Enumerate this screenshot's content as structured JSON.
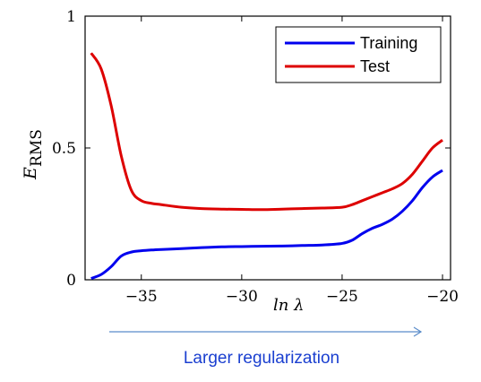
{
  "chart_data": {
    "type": "line",
    "xlabel": "ln λ",
    "ylabel": "E",
    "ylabel_sub": "RMS",
    "xlim": [
      -37.8,
      -19.6
    ],
    "ylim": [
      0,
      1
    ],
    "xticks": [
      -35,
      -30,
      -25,
      -20
    ],
    "xtick_labels": [
      "−35",
      "−30",
      "−25",
      "−20"
    ],
    "yticks": [
      0,
      0.5,
      1
    ],
    "ytick_labels": [
      "0",
      "0.5",
      "1"
    ],
    "grid": false,
    "legend_position": "top-right",
    "series": [
      {
        "name": "Training",
        "color": "#0000ee",
        "x": [
          -37.5,
          -37.0,
          -36.5,
          -36.0,
          -35.5,
          -35.0,
          -34.5,
          -34.0,
          -33.0,
          -32.0,
          -31.0,
          -30.0,
          -29.0,
          -28.0,
          -27.0,
          -26.0,
          -25.0,
          -24.5,
          -24.0,
          -23.5,
          -23.0,
          -22.5,
          -22.0,
          -21.5,
          -21.0,
          -20.5,
          -20.0
        ],
        "y": [
          0.005,
          0.02,
          0.05,
          0.09,
          0.105,
          0.11,
          0.113,
          0.115,
          0.118,
          0.122,
          0.125,
          0.126,
          0.127,
          0.128,
          0.13,
          0.132,
          0.138,
          0.15,
          0.175,
          0.195,
          0.21,
          0.23,
          0.26,
          0.3,
          0.35,
          0.39,
          0.415
        ]
      },
      {
        "name": "Test",
        "color": "#dd0000",
        "x": [
          -37.5,
          -37.0,
          -36.5,
          -36.0,
          -35.5,
          -35.0,
          -34.5,
          -34.0,
          -33.0,
          -32.0,
          -31.0,
          -30.0,
          -29.0,
          -28.0,
          -27.0,
          -26.0,
          -25.0,
          -24.5,
          -24.0,
          -23.5,
          -23.0,
          -22.5,
          -22.0,
          -21.5,
          -21.0,
          -20.5,
          -20.0
        ],
        "y": [
          0.86,
          0.8,
          0.66,
          0.47,
          0.34,
          0.3,
          0.29,
          0.285,
          0.275,
          0.27,
          0.268,
          0.267,
          0.266,
          0.268,
          0.27,
          0.272,
          0.275,
          0.285,
          0.3,
          0.315,
          0.33,
          0.345,
          0.365,
          0.4,
          0.45,
          0.5,
          0.53
        ]
      }
    ]
  },
  "annotation": {
    "text": "Larger regularization",
    "color": "#1a3fd0",
    "arrow_color": "#5b8cc9"
  }
}
